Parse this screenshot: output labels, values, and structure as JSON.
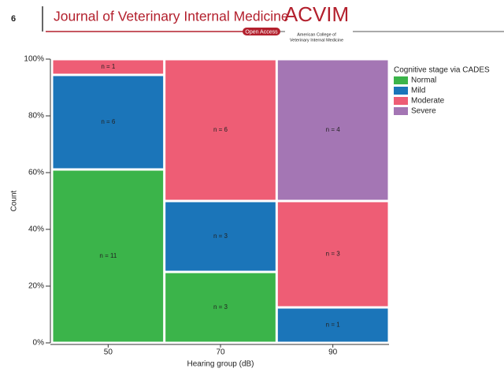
{
  "header": {
    "page_number": "6",
    "journal": "Journal of Veterinary Internal Medicine",
    "badge": "Open Access",
    "logo": "ACVIM",
    "logo_line1": "American College of",
    "logo_line2": "Veterinary Internal Medicine"
  },
  "chart_data": {
    "type": "mosaic",
    "categories": [
      "50",
      "70",
      "90"
    ],
    "series": [
      {
        "name": "Normal",
        "color": "#3bb44a",
        "values": [
          11,
          3,
          0
        ],
        "value_labels": [
          "n = 11",
          "n = 3",
          null
        ]
      },
      {
        "name": "Mild",
        "color": "#1b75b9",
        "values": [
          6,
          3,
          1
        ],
        "value_labels": [
          "n = 6",
          "n = 3",
          "n = 1"
        ]
      },
      {
        "name": "Moderate",
        "color": "#ee5d75",
        "values": [
          1,
          6,
          3
        ],
        "value_labels": [
          "n = 1",
          "n = 6",
          "n = 3"
        ]
      },
      {
        "name": "Severe",
        "color": "#a476b4",
        "values": [
          0,
          0,
          4
        ],
        "value_labels": [
          null,
          null,
          "n = 4"
        ]
      }
    ],
    "ylim": [
      0,
      100
    ],
    "yticks": [
      {
        "value": 0,
        "label": "0%"
      },
      {
        "value": 20,
        "label": "20%"
      },
      {
        "value": 40,
        "label": "40%"
      },
      {
        "value": 60,
        "label": "60%"
      },
      {
        "value": 80,
        "label": "80%"
      },
      {
        "value": 100,
        "label": "100%"
      }
    ],
    "xlabel": "Hearing group (dB)",
    "ylabel": "Count",
    "legend_title": "Cognitive stage via CADES",
    "legend_position": "right"
  }
}
